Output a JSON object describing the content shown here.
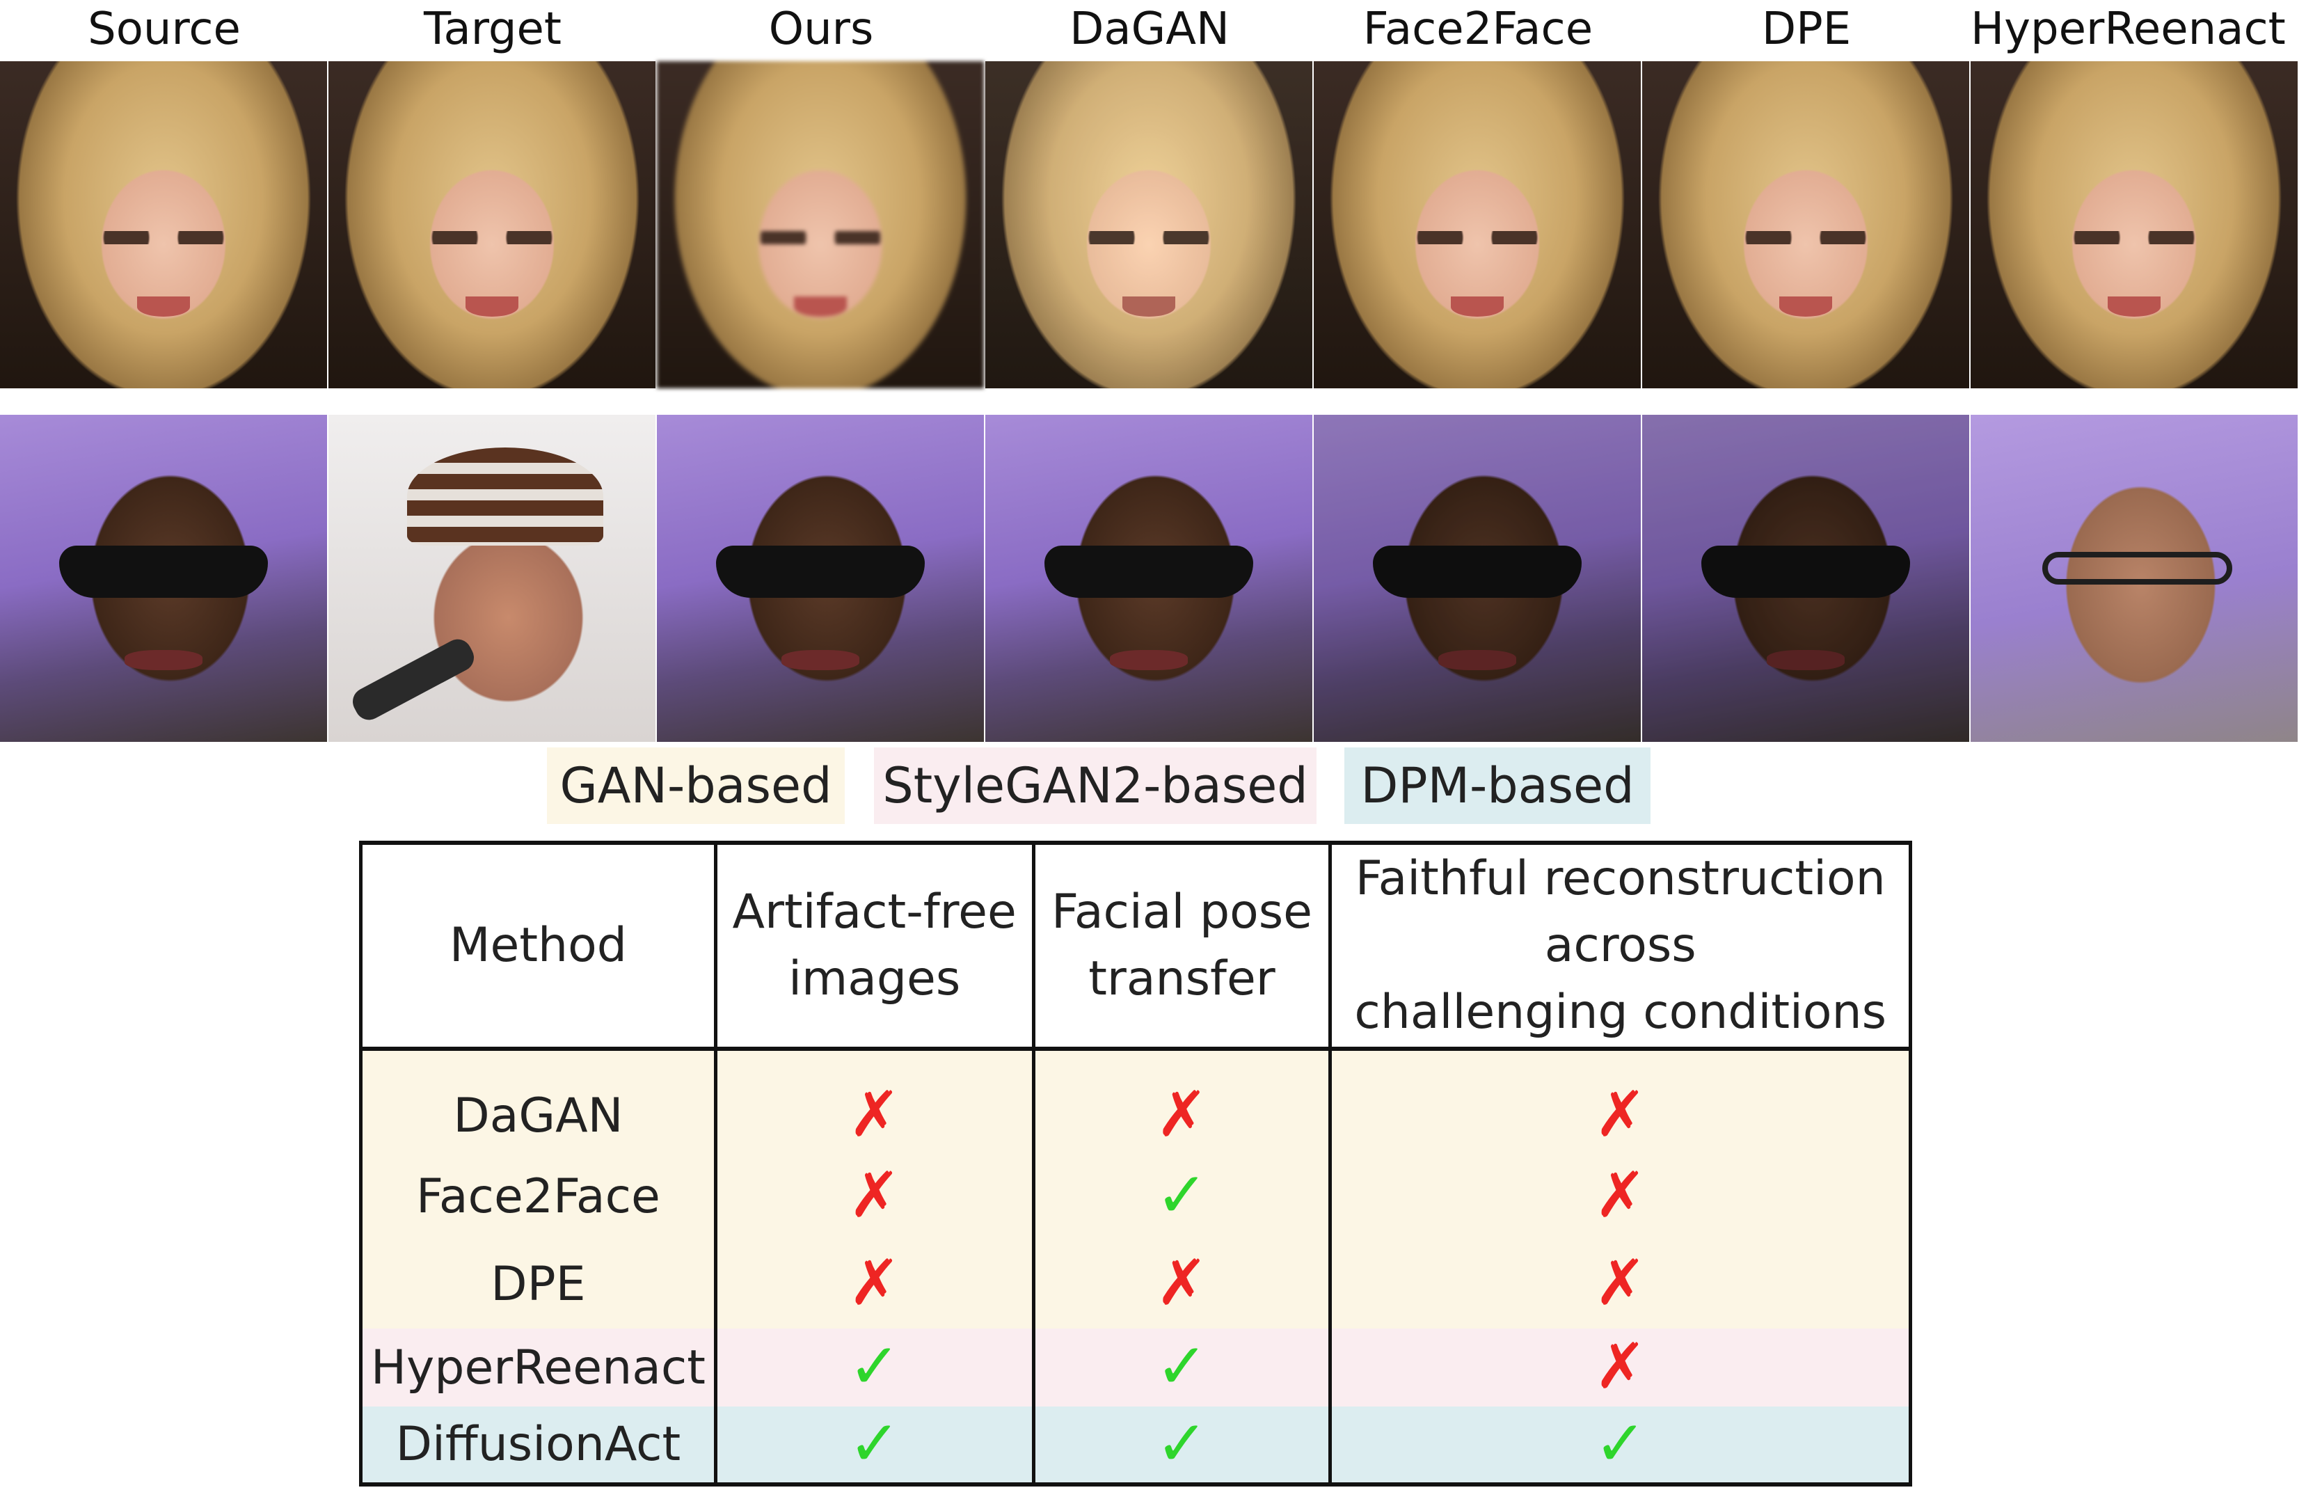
{
  "column_headers": [
    "Source",
    "Target",
    "Ours",
    "DaGAN",
    "Face2Face",
    "DPE",
    "HyperReenact"
  ],
  "image_rows": [
    [
      "face-blonde",
      "face-blonde",
      "face-blonde",
      "face-blonde",
      "face-blonde",
      "face-blonde",
      "face-blonde"
    ],
    [
      "face-dark",
      "face-beanie",
      "face-dark",
      "face-dark",
      "face-dark",
      "face-dark",
      "face-glasses"
    ]
  ],
  "legend": {
    "gan": "GAN-based",
    "stylegan2": "StyleGAN2-based",
    "dpm": "DPM-based"
  },
  "colors": {
    "gan": "#fcf6e5",
    "stylegan2": "#faedf0",
    "dpm": "#dcedf0",
    "check": "#2ed52c",
    "cross": "#ee2523"
  },
  "table": {
    "headers": {
      "method": "Method",
      "artifact_line1": "Artifact-free",
      "artifact_line2": "images",
      "pose_line1": "Facial pose",
      "pose_line2": "transfer",
      "faithful_line1": "Faithful reconstruction",
      "faithful_line2": "across",
      "faithful_line3": "challenging conditions"
    },
    "rows": [
      {
        "method": "DaGAN",
        "group": "gan",
        "artifact_free": "✗",
        "pose_transfer": "✗",
        "faithful": "✗"
      },
      {
        "method": "Face2Face",
        "group": "gan",
        "artifact_free": "✗",
        "pose_transfer": "✓",
        "faithful": "✗"
      },
      {
        "method": "DPE",
        "group": "gan",
        "artifact_free": "✗",
        "pose_transfer": "✗",
        "faithful": "✗"
      },
      {
        "method": "HyperReenact",
        "group": "stylegan2",
        "artifact_free": "✓",
        "pose_transfer": "✓",
        "faithful": "✗"
      },
      {
        "method": "DiffusionAct",
        "group": "dpm",
        "artifact_free": "✓",
        "pose_transfer": "✓",
        "faithful": "✓"
      }
    ]
  }
}
